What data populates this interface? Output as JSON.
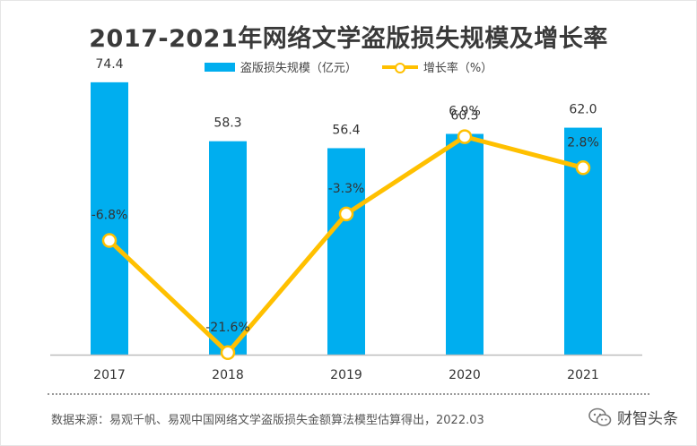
{
  "title": "2017-2021年网络文学盗版损失规模及增长率",
  "legend": [
    {
      "label": "盗版损失规模（亿元）",
      "kind": "bar"
    },
    {
      "label": "增长率（%）",
      "kind": "line"
    }
  ],
  "colors": {
    "bar": "#00AEEF",
    "line": "#FFC000",
    "axis": "#bdbdbd",
    "text": "#333333"
  },
  "chart_data": {
    "type": "bar+line",
    "categories": [
      "2017",
      "2018",
      "2019",
      "2020",
      "2021"
    ],
    "series": [
      {
        "name": "盗版损失规模（亿元）",
        "type": "bar",
        "values": [
          74.4,
          58.3,
          56.4,
          60.3,
          62.0
        ],
        "labels": [
          "74.4",
          "58.3",
          "56.4",
          "60.3",
          "62.0"
        ]
      },
      {
        "name": "增长率（%）",
        "type": "line",
        "values": [
          -6.8,
          -21.6,
          -3.3,
          6.9,
          2.8
        ],
        "labels": [
          "-6.8%",
          "-21.6%",
          "-3.3%",
          "6.9%",
          "2.8%"
        ]
      }
    ],
    "bar_axis_range": [
      0,
      84.4
    ],
    "line_axis_range": [
      -26,
      13
    ],
    "grid": false,
    "legend_position": "top"
  },
  "source": "数据来源：易观千帆、易观中国网络文学盗版损失金额算法模型估算得出，2022.03",
  "watermark": {
    "text": "财智头条",
    "icon": "wechat-icon"
  }
}
